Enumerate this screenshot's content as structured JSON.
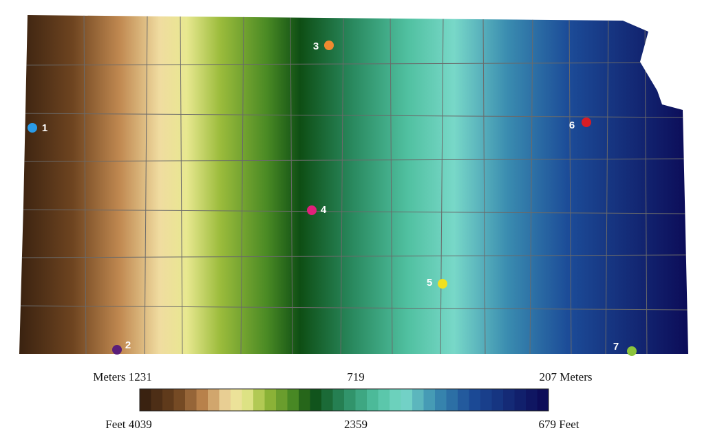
{
  "map": {
    "markers": [
      {
        "label": "1",
        "color": "#2a9be8"
      },
      {
        "label": "2",
        "color": "#5a1f7a"
      },
      {
        "label": "3",
        "color": "#f08a30"
      },
      {
        "label": "4",
        "color": "#e0207a"
      },
      {
        "label": "5",
        "color": "#f0e020"
      },
      {
        "label": "6",
        "color": "#d81c24"
      },
      {
        "label": "7",
        "color": "#8cc43c"
      }
    ]
  },
  "legend": {
    "top": [
      "Meters 1231",
      "719",
      "207 Meters"
    ],
    "bottom": [
      "Feet 4039",
      "2359",
      "679 Feet"
    ]
  }
}
